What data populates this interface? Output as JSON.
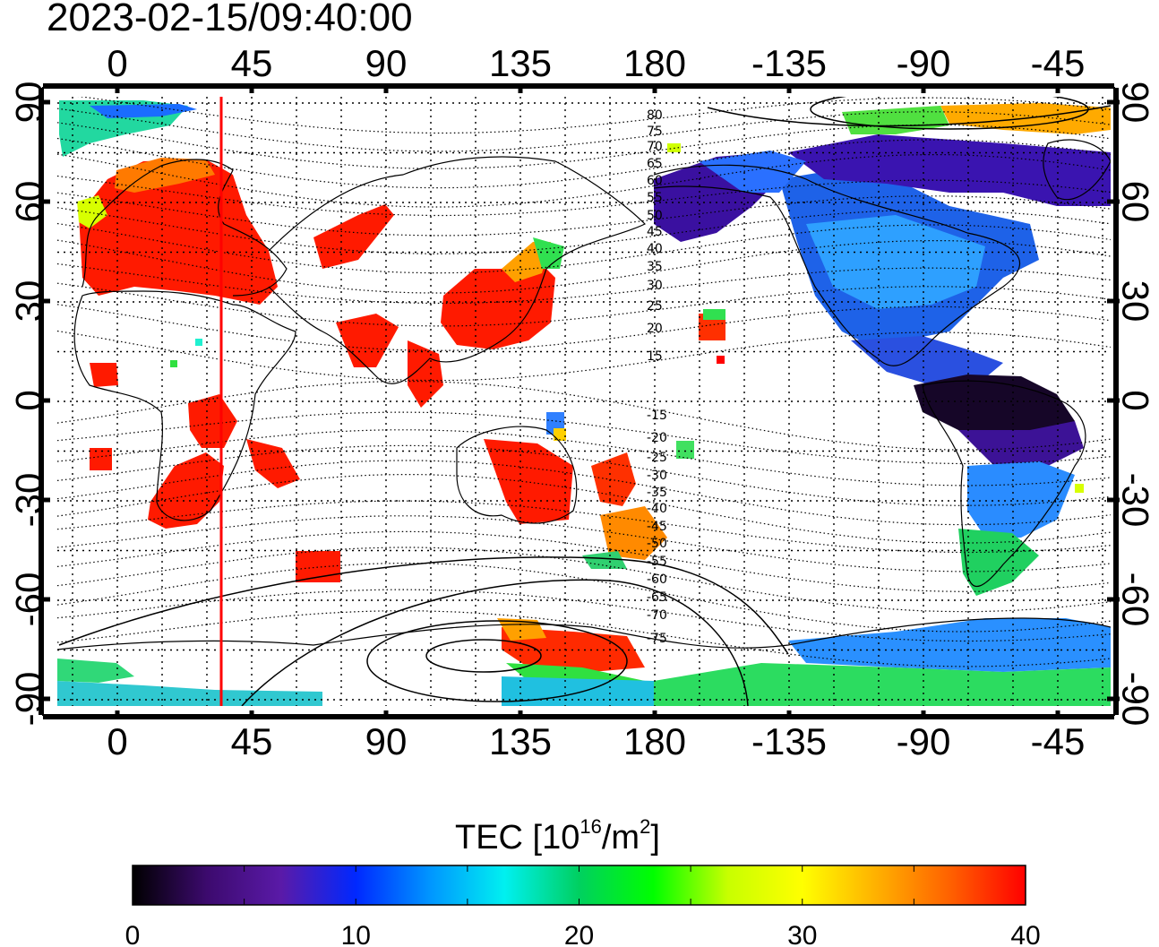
{
  "timestamp": "2023-02-15/09:40:00",
  "colorbar": {
    "title_main": "TEC  [10",
    "title_exp": "16",
    "title_unit": "/m",
    "title_unit_exp": "2",
    "title_close": "]",
    "min": 0,
    "max": 40,
    "tick_labels": [
      "0",
      "10",
      "20",
      "30",
      "40"
    ],
    "stops": [
      "#000000",
      "#3c0a6e",
      "#5a1aa8",
      "#0028ff",
      "#0096ff",
      "#00f0f0",
      "#00d060",
      "#00ff00",
      "#c8ff00",
      "#ffff00",
      "#ffb000",
      "#ff6000",
      "#ff0000"
    ]
  },
  "map": {
    "lon_ticks": [
      "0",
      "45",
      "90",
      "135",
      "180",
      "-135",
      "-90",
      "-45"
    ],
    "lat_ticks_left": [
      "90",
      "60",
      "30",
      "0",
      "-30",
      "-60",
      "-90"
    ],
    "lat_ticks_right": [
      "90",
      "60",
      "30",
      "0",
      "-30",
      "-60",
      "-90"
    ],
    "magnetic_lat_labels": [
      "80",
      "75",
      "70",
      "65",
      "60",
      "55",
      "50",
      "45",
      "40",
      "35",
      "30",
      "25",
      "20",
      "15",
      "-15",
      "-20",
      "-25",
      "-30",
      "-35",
      "-40",
      "-45",
      "-50",
      "-55",
      "-60",
      "-65",
      "-70",
      "-75"
    ],
    "terminator_color": "#ff0000"
  }
}
